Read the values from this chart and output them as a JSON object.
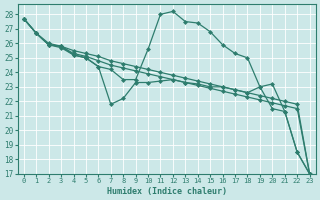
{
  "xlabel": "Humidex (Indice chaleur)",
  "bg_color": "#cce8e8",
  "grid_color": "#b0d0d0",
  "line_color": "#2e7d6e",
  "marker": "D",
  "markersize": 2.0,
  "linewidth": 0.9,
  "xlim": [
    -0.5,
    23.5
  ],
  "ylim": [
    17,
    28.7
  ],
  "yticks": [
    17,
    18,
    19,
    20,
    21,
    22,
    23,
    24,
    25,
    26,
    27,
    28
  ],
  "xticks": [
    0,
    1,
    2,
    3,
    4,
    5,
    6,
    7,
    8,
    9,
    10,
    11,
    12,
    13,
    14,
    15,
    16,
    17,
    18,
    19,
    20,
    21,
    22,
    23
  ],
  "series": [
    [
      27.7,
      26.7,
      25.9,
      25.7,
      25.2,
      25.0,
      24.4,
      21.8,
      22.2,
      23.3,
      23.3,
      23.4,
      23.5,
      23.3,
      23.2,
      23.0,
      23.0,
      22.8,
      22.6,
      23.0,
      21.5,
      21.3,
      18.5,
      17.0
    ],
    [
      27.7,
      26.7,
      25.9,
      25.8,
      25.3,
      25.1,
      24.8,
      24.5,
      24.3,
      24.1,
      23.9,
      23.7,
      23.5,
      23.3,
      23.1,
      22.9,
      22.7,
      22.5,
      22.3,
      22.1,
      21.9,
      21.7,
      21.5,
      17.0
    ],
    [
      27.7,
      26.7,
      26.0,
      25.8,
      25.5,
      25.3,
      25.1,
      24.8,
      24.6,
      24.4,
      24.2,
      24.0,
      23.8,
      23.6,
      23.4,
      23.2,
      23.0,
      22.8,
      22.6,
      22.4,
      22.2,
      22.0,
      21.8,
      17.0
    ],
    [
      27.7,
      26.7,
      25.9,
      25.8,
      25.2,
      25.0,
      24.4,
      24.2,
      23.5,
      23.5,
      25.6,
      28.0,
      28.2,
      27.5,
      27.4,
      26.8,
      25.9,
      25.3,
      25.0,
      23.0,
      23.2,
      21.3,
      18.5,
      17.0
    ]
  ]
}
